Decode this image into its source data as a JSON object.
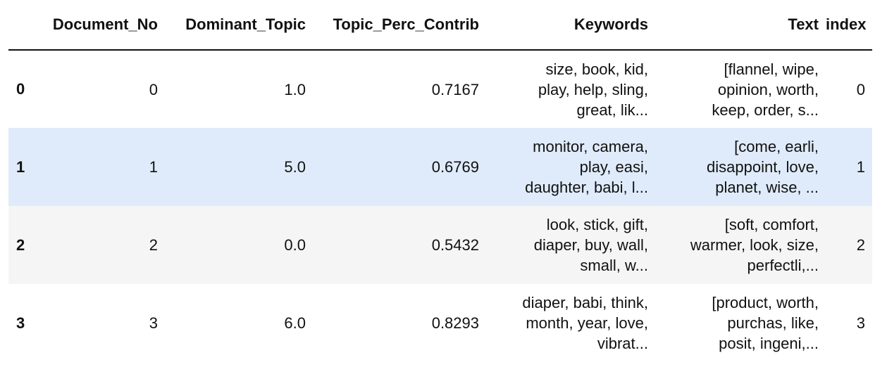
{
  "columns": {
    "index_header": "",
    "document_no": "Document_No",
    "dominant_topic": "Dominant_Topic",
    "topic_perc_contrib": "Topic_Perc_Contrib",
    "keywords": "Keywords",
    "text": "Text",
    "index": "index"
  },
  "rows": [
    {
      "idx": "0",
      "document_no": "0",
      "dominant_topic": "1.0",
      "topic_perc_contrib": "0.7167",
      "keywords": [
        "size, book, kid,",
        "play, help, sling,",
        "great, lik..."
      ],
      "text": [
        "[flannel, wipe,",
        "opinion, worth,",
        "keep, order, s..."
      ],
      "index": "0"
    },
    {
      "idx": "1",
      "document_no": "1",
      "dominant_topic": "5.0",
      "topic_perc_contrib": "0.6769",
      "keywords": [
        "monitor, camera,",
        "play, easi,",
        "daughter, babi, l..."
      ],
      "text": [
        "[come, earli,",
        "disappoint, love,",
        "planet, wise, ..."
      ],
      "index": "1"
    },
    {
      "idx": "2",
      "document_no": "2",
      "dominant_topic": "0.0",
      "topic_perc_contrib": "0.5432",
      "keywords": [
        "look, stick, gift,",
        "diaper, buy, wall,",
        "small, w..."
      ],
      "text": [
        "[soft, comfort,",
        "warmer, look, size,",
        "perfectli,..."
      ],
      "index": "2"
    },
    {
      "idx": "3",
      "document_no": "3",
      "dominant_topic": "6.0",
      "topic_perc_contrib": "0.8293",
      "keywords": [
        "diaper, babi, think,",
        "month, year, love,",
        "vibrat..."
      ],
      "text": [
        "[product, worth,",
        "purchas, like,",
        "posit, ingeni,..."
      ],
      "index": "3"
    }
  ],
  "colors": {
    "hover_row": "#dfebfa",
    "striped_row": "#f5f5f5",
    "header_rule": "#111111"
  }
}
